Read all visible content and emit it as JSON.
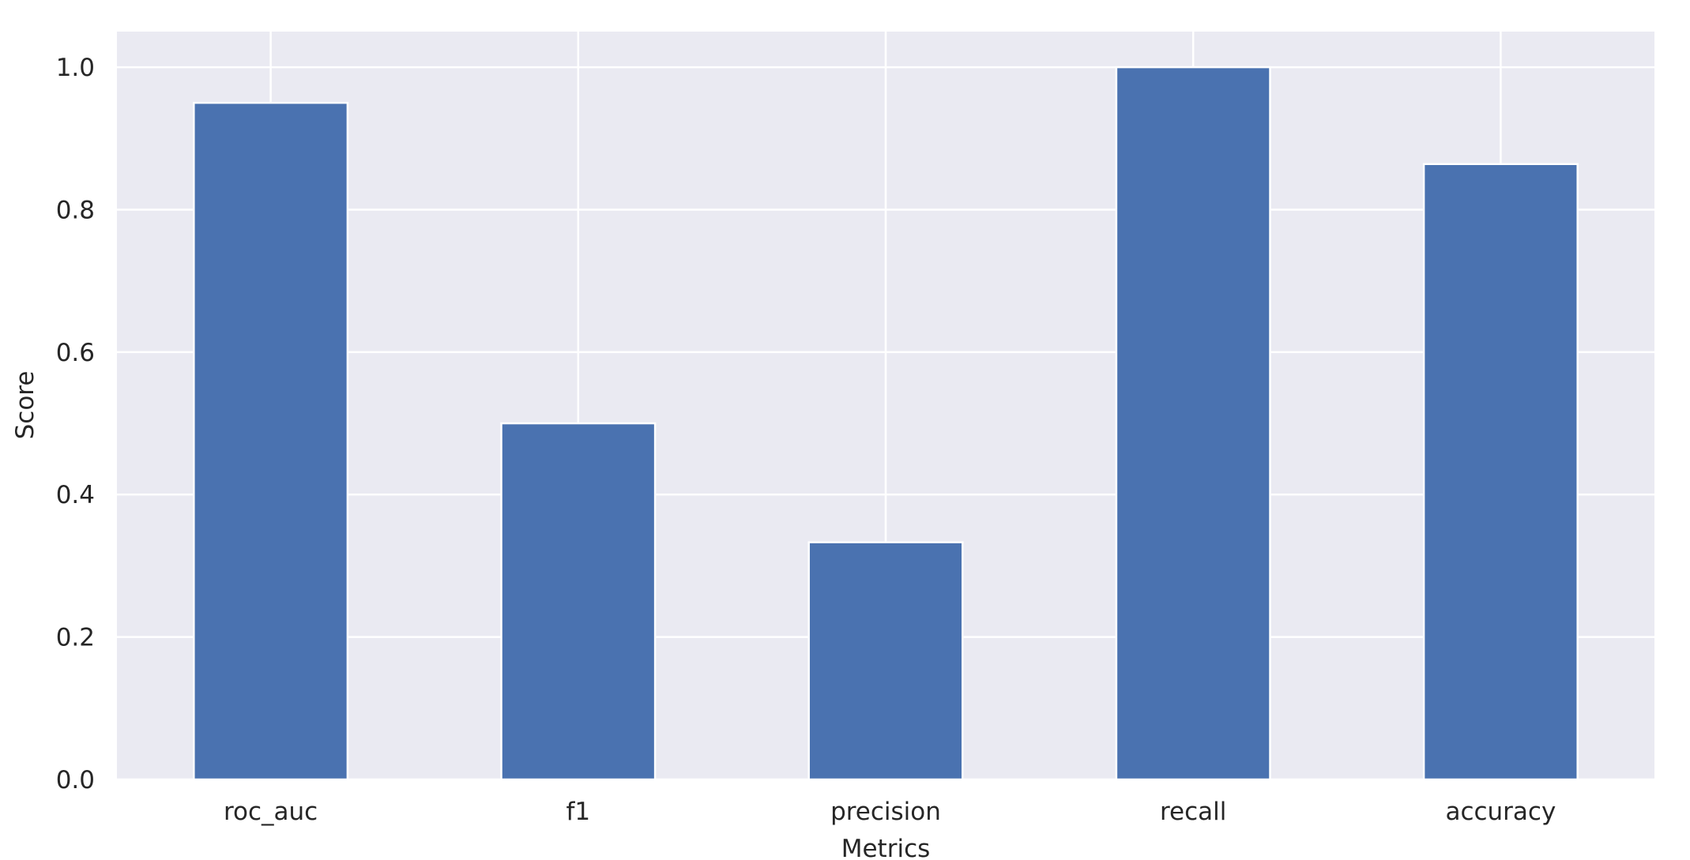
{
  "chart_data": {
    "type": "bar",
    "categories": [
      "roc_auc",
      "f1",
      "precision",
      "recall",
      "accuracy"
    ],
    "values": [
      0.95,
      0.5,
      0.333,
      1.0,
      0.864
    ],
    "xlabel": "Metrics",
    "ylabel": "Score",
    "ylim": [
      0,
      1.05
    ],
    "yticks": [
      0.0,
      0.2,
      0.4,
      0.6,
      0.8,
      1.0
    ],
    "ytick_labels": [
      "0.0",
      "0.2",
      "0.4",
      "0.6",
      "0.8",
      "1.0"
    ],
    "grid": true,
    "legend": "none",
    "colors": {
      "bar": "#4a72b0",
      "plot_background": "#eaeaf2",
      "grid": "#ffffff",
      "text": "#262626"
    }
  }
}
